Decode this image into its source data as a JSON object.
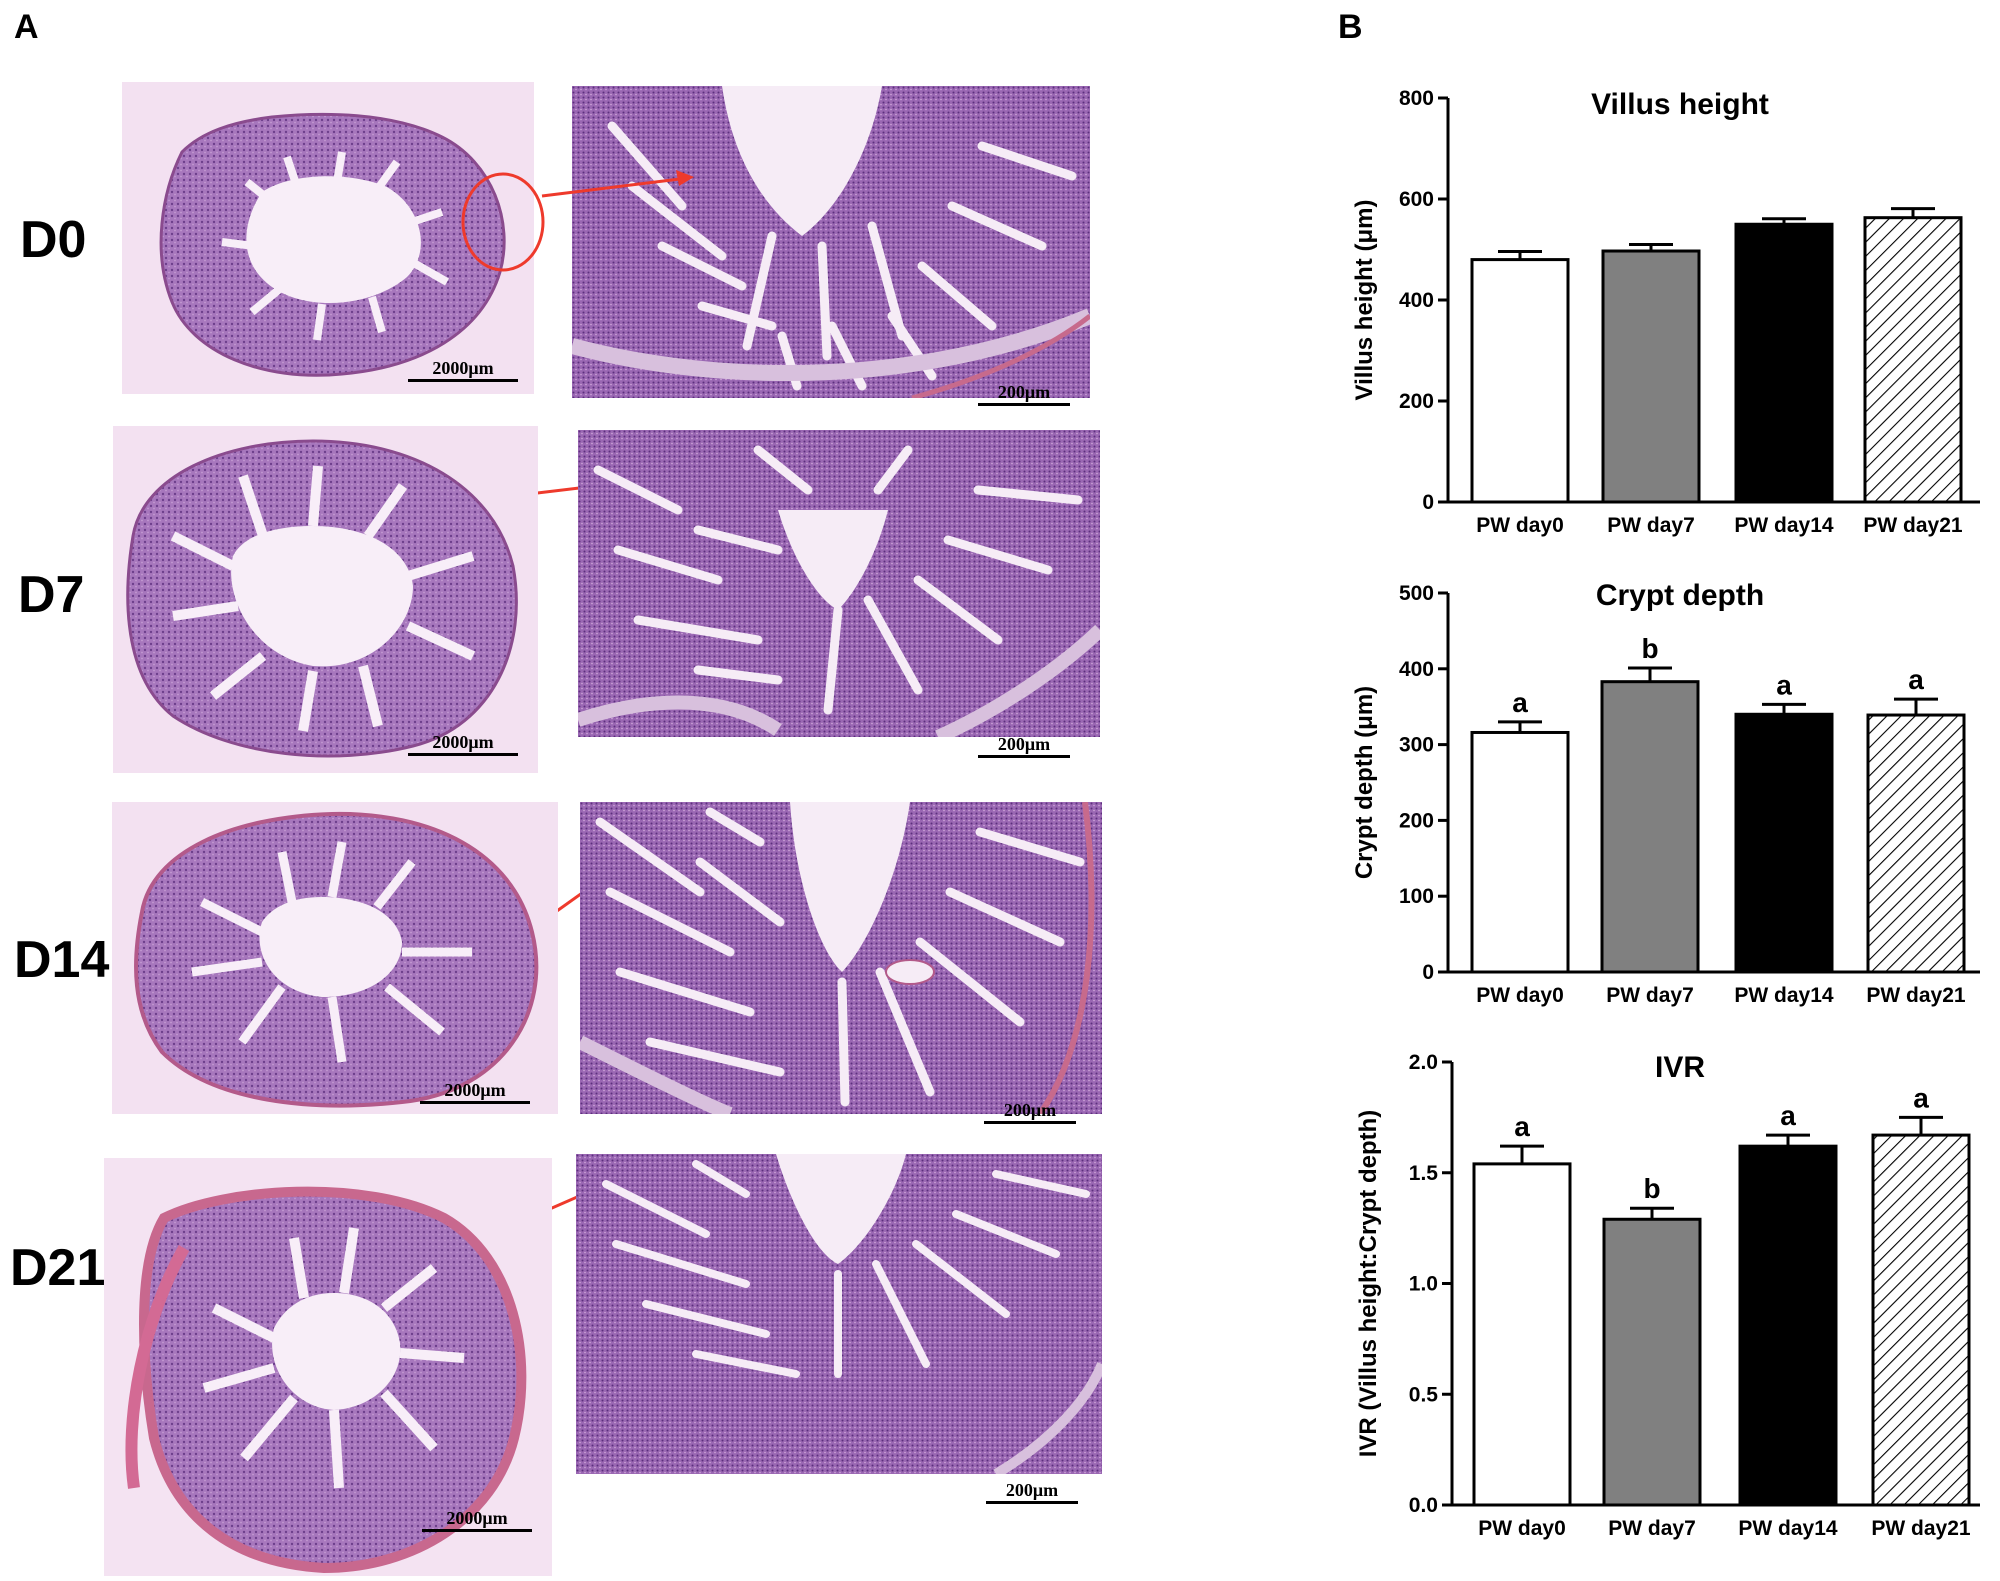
{
  "panels": {
    "a": "A",
    "b": "B"
  },
  "rows": [
    {
      "label": "D0",
      "overview_scale": "2000μm",
      "zoom_scale": "200μm"
    },
    {
      "label": "D7",
      "overview_scale": "2000μm",
      "zoom_scale": "200μm"
    },
    {
      "label": "D14",
      "overview_scale": "2000μm",
      "zoom_scale": "200μm"
    },
    {
      "label": "D21",
      "overview_scale": "2000μm",
      "zoom_scale": "200μm"
    }
  ],
  "colors": {
    "tissue_bg": "#f1d9ee",
    "tissue_dark": "#8e5aa8",
    "tissue_mid": "#b58ac4",
    "lumen": "#f6ecf6",
    "highlight": "#ee3a2c",
    "bar_colors": [
      "#ffffff",
      "#808080",
      "#000000",
      "#ffffff"
    ]
  },
  "chart_data": [
    {
      "type": "bar",
      "title": "Villus height",
      "ylabel": "Villus height (μm)",
      "categories": [
        "PW day0",
        "PW day7",
        "PW day14",
        "PW day21"
      ],
      "values": [
        480,
        497,
        550,
        563
      ],
      "errors": [
        16,
        13,
        11,
        18
      ],
      "letters": [
        "",
        "",
        "",
        ""
      ],
      "ylim": [
        0,
        800
      ],
      "yticks": [
        0,
        200,
        400,
        600,
        800
      ],
      "ytick_labels": [
        "0",
        "200",
        "400",
        "600",
        "800"
      ],
      "fills": [
        "white",
        "gray",
        "black",
        "hatch"
      ]
    },
    {
      "type": "bar",
      "title": "Crypt depth",
      "ylabel": "Crypt depth (μm)",
      "categories": [
        "PW day0",
        "PW day7",
        "PW day14",
        "PW day21"
      ],
      "values": [
        316,
        383,
        340,
        339
      ],
      "errors": [
        14,
        18,
        13,
        21
      ],
      "letters": [
        "a",
        "b",
        "a",
        "a"
      ],
      "ylim": [
        0,
        500
      ],
      "yticks": [
        0,
        100,
        200,
        300,
        400,
        500
      ],
      "ytick_labels": [
        "0",
        "100",
        "200",
        "300",
        "400",
        "500"
      ],
      "fills": [
        "white",
        "gray",
        "black",
        "hatch"
      ]
    },
    {
      "type": "bar",
      "title": "IVR",
      "ylabel": "IVR (Villus height:Crypt depth)",
      "categories": [
        "PW day0",
        "PW day7",
        "PW day14",
        "PW day21"
      ],
      "values": [
        1.54,
        1.29,
        1.62,
        1.67
      ],
      "errors": [
        0.08,
        0.05,
        0.05,
        0.08
      ],
      "letters": [
        "a",
        "b",
        "a",
        "a"
      ],
      "ylim": [
        0,
        2.0
      ],
      "yticks": [
        0,
        0.5,
        1.0,
        1.5,
        2.0
      ],
      "ytick_labels": [
        "0.0",
        "0.5",
        "1.0",
        "1.5",
        "2.0"
      ],
      "fills": [
        "white",
        "gray",
        "black",
        "hatch"
      ]
    }
  ]
}
